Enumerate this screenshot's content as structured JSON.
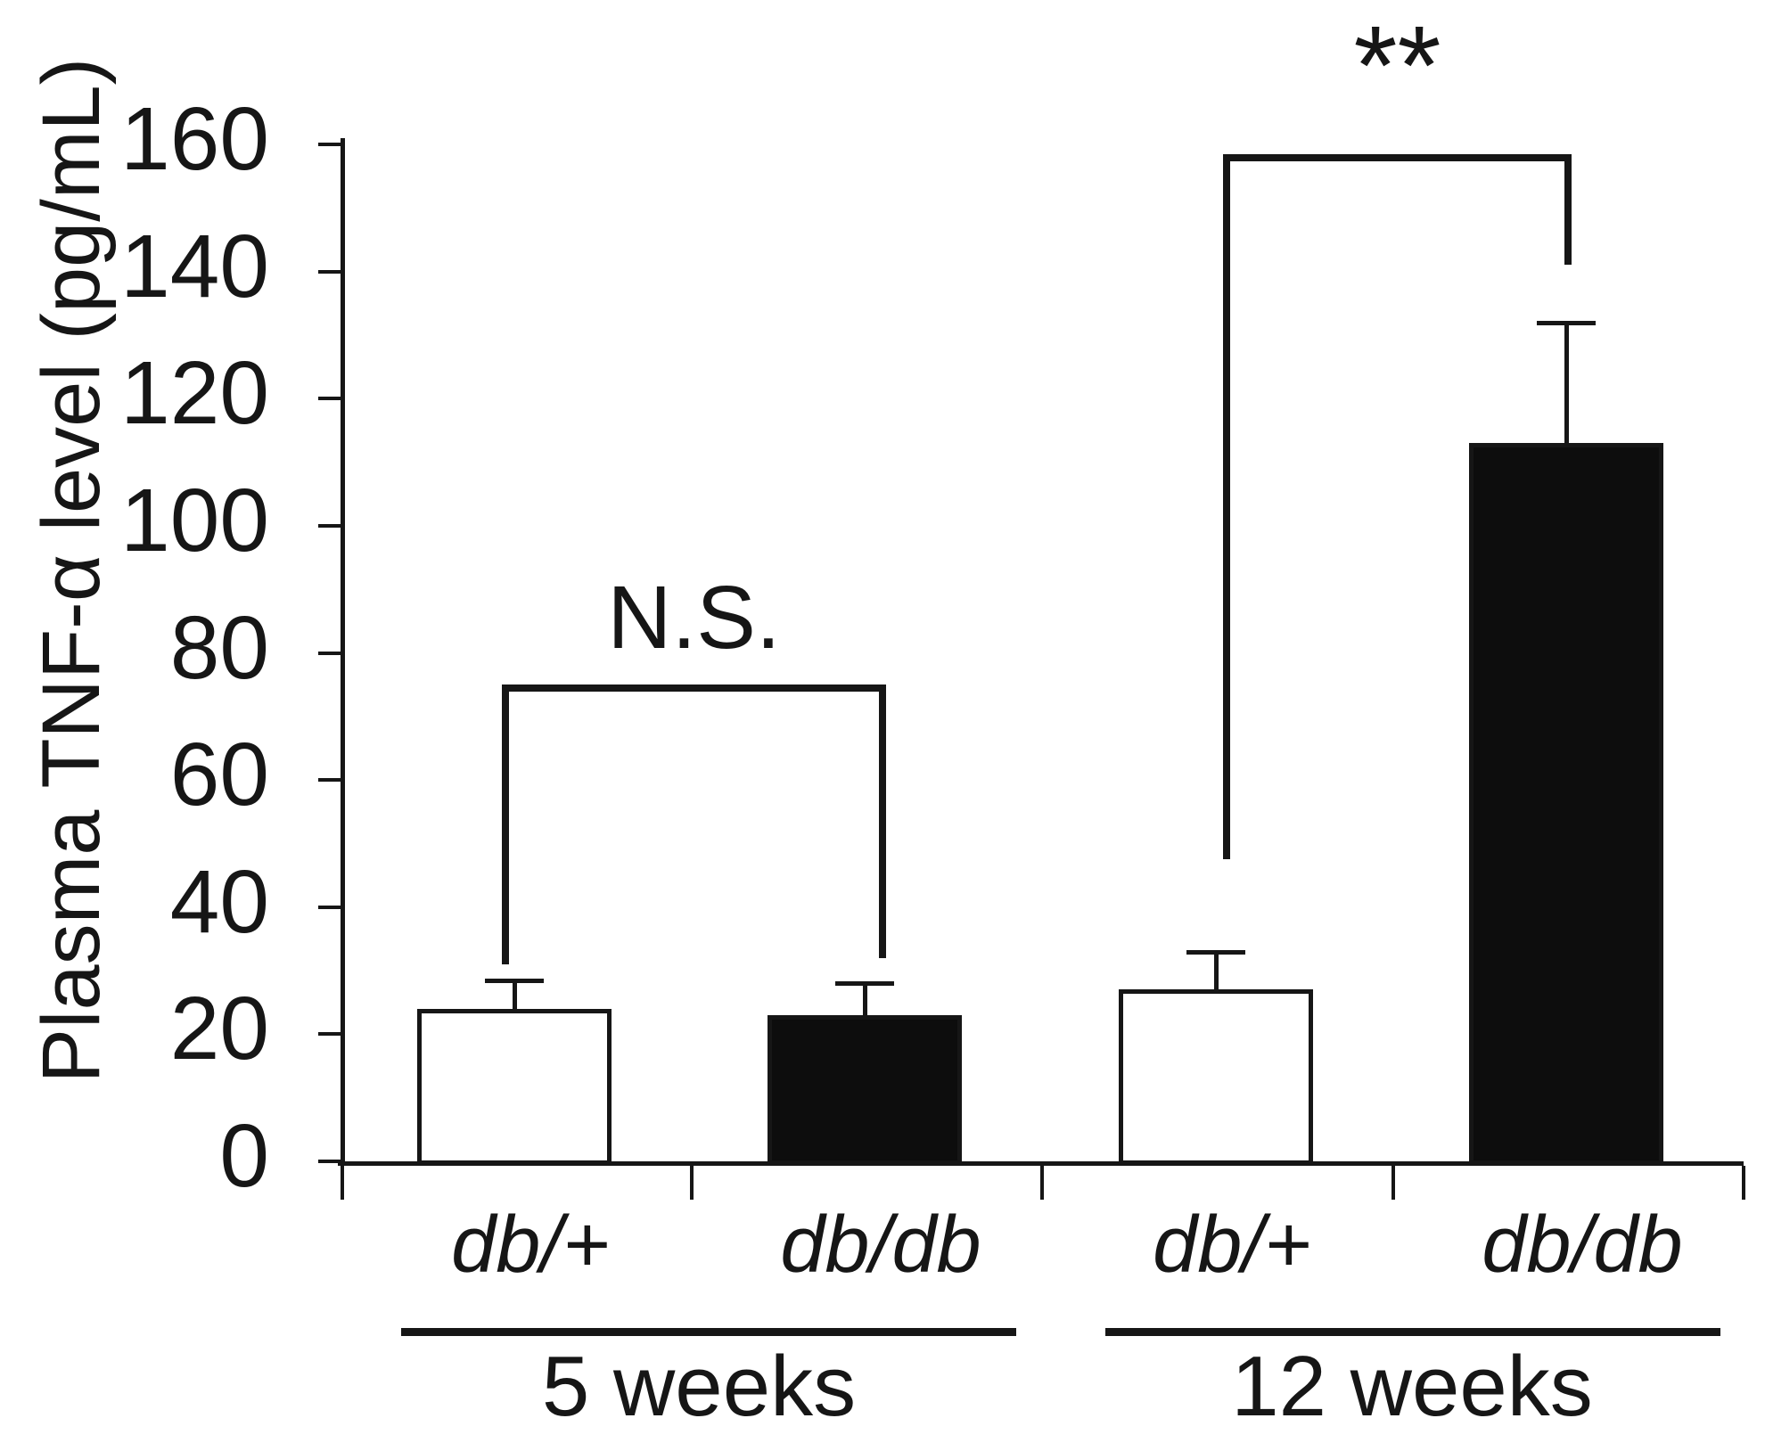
{
  "figure": {
    "background": "#ffffff",
    "ink": "#161616",
    "bar_fill_open": "#ffffff",
    "bar_fill_solid": "#0d0d0d"
  },
  "chart_data": {
    "type": "bar",
    "title": "",
    "xlabel": "",
    "ylabel": "Plasma TNF-α level (pg/mL)",
    "ylim": [
      0,
      160
    ],
    "ytick_step": 20,
    "ytick_labels": [
      "0",
      "20",
      "40",
      "60",
      "80",
      "100",
      "120",
      "140",
      "160"
    ],
    "grid": false,
    "legend": "none",
    "unit": "pg/mL",
    "groups": [
      {
        "label": "5 weeks",
        "categories": [
          "db/+",
          "db/db"
        ]
      },
      {
        "label": "12 weeks",
        "categories": [
          "db/+",
          "db/db"
        ]
      }
    ],
    "bars": [
      {
        "group": "5 weeks",
        "category": "db/+",
        "value": 24,
        "error_plus": 4.5,
        "fill": "open"
      },
      {
        "group": "5 weeks",
        "category": "db/db",
        "value": 23,
        "error_plus": 5,
        "fill": "solid"
      },
      {
        "group": "12 weeks",
        "category": "db/+",
        "value": 27,
        "error_plus": 6,
        "fill": "open"
      },
      {
        "group": "12 weeks",
        "category": "db/db",
        "value": 113,
        "error_plus": 19,
        "fill": "solid"
      }
    ],
    "annotations": [
      {
        "label": "N.S.",
        "compares": [
          "5 weeks db/+",
          "5 weeks db/db"
        ],
        "bracket_top_value": 75,
        "drop_to_values": [
          31,
          32
        ]
      },
      {
        "label": "**",
        "compares": [
          "12 weeks db/+",
          "12 weeks db/db"
        ],
        "bracket_top_value": 158.5,
        "drop_to_values": [
          47.5,
          141
        ]
      }
    ]
  }
}
